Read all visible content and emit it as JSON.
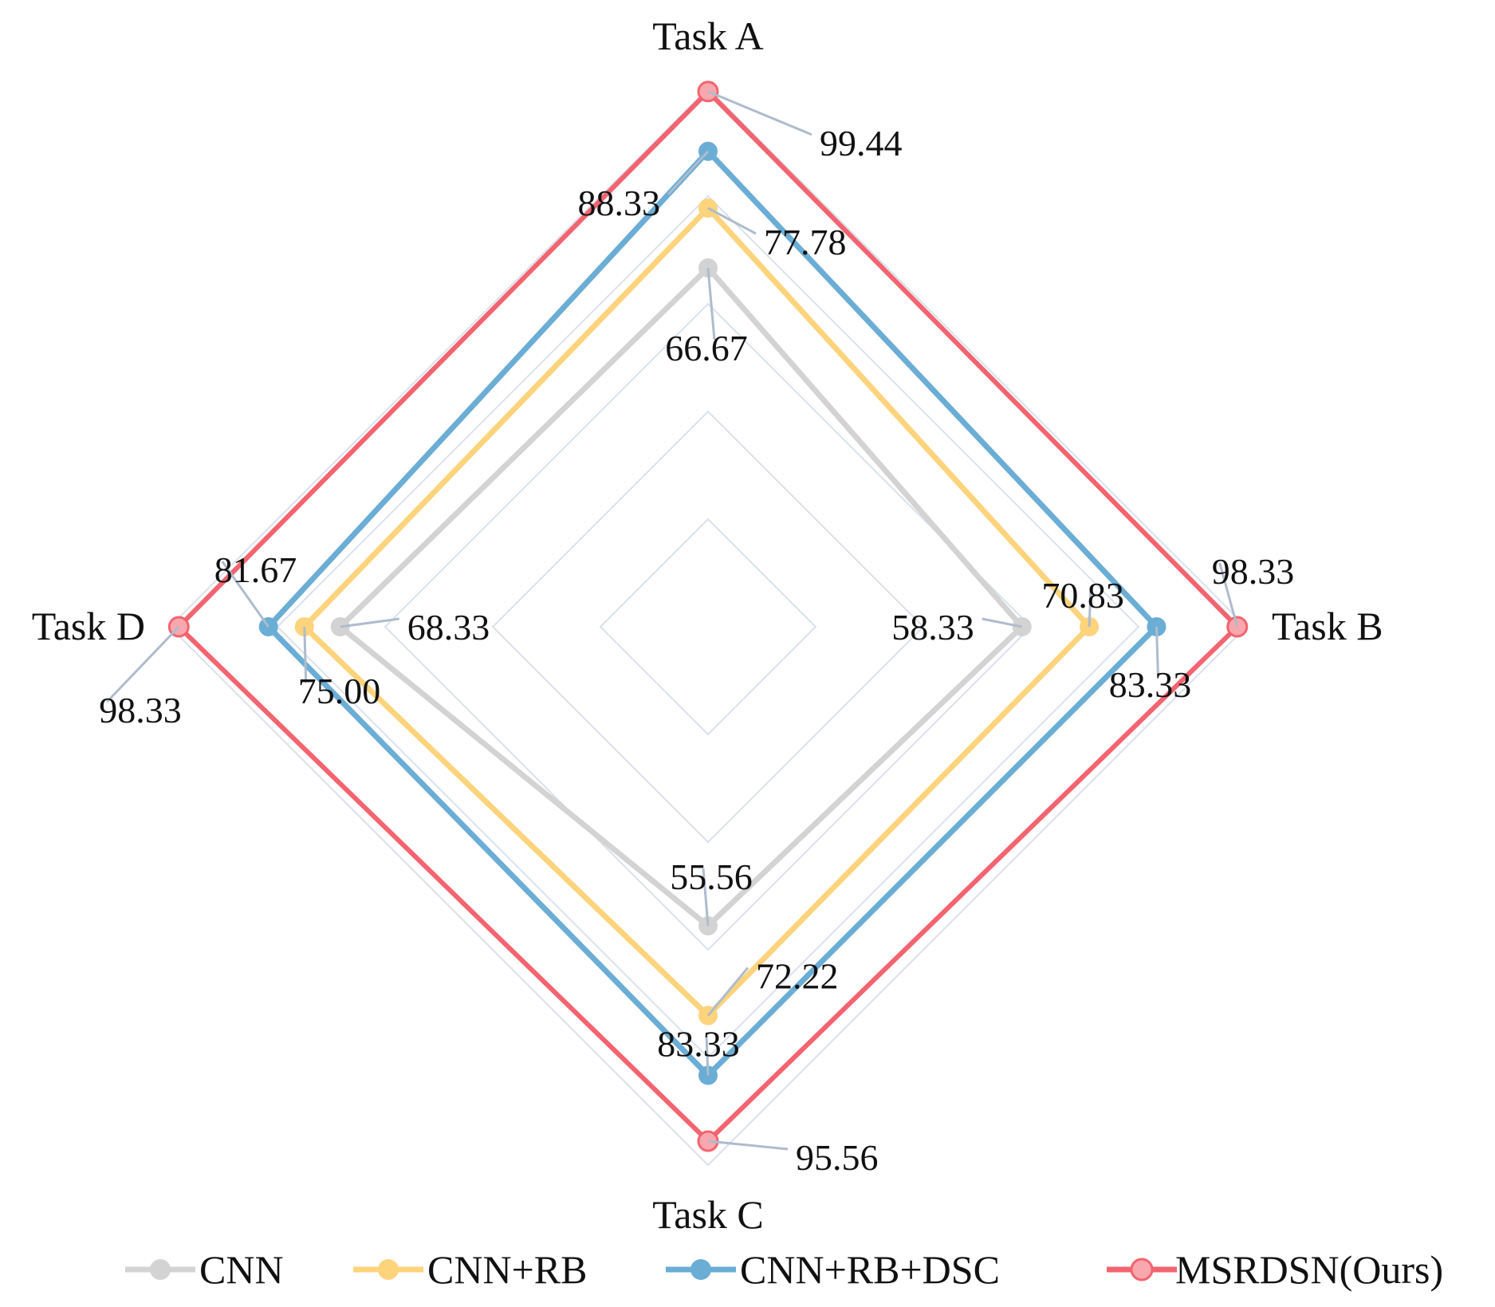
{
  "chart_data": {
    "type": "radar",
    "axes": [
      "Task A",
      "Task B",
      "Task C",
      "Task D"
    ],
    "axis_range": [
      0,
      100
    ],
    "grid_levels": [
      20,
      40,
      60,
      80,
      100
    ],
    "series": [
      {
        "name": "CNN",
        "values": [
          66.67,
          58.33,
          55.56,
          68.33
        ],
        "labels": [
          "66.67",
          "58.33",
          "55.56",
          "68.33"
        ],
        "color": "#d3d3d3"
      },
      {
        "name": "CNN+RB",
        "values": [
          77.78,
          70.83,
          72.22,
          75.0
        ],
        "labels": [
          "77.78",
          "70.83",
          "72.22",
          "75.00"
        ],
        "color": "#fdd37c"
      },
      {
        "name": "CNN+RB+DSC",
        "values": [
          88.33,
          83.33,
          83.33,
          81.67
        ],
        "labels": [
          "88.33",
          "83.33",
          "83.33",
          "81.67"
        ],
        "color": "#6aadd5"
      },
      {
        "name": "MSRDSN(Ours)",
        "values": [
          99.44,
          98.33,
          95.56,
          98.33
        ],
        "labels": [
          "99.44",
          "98.33",
          "95.56",
          "98.33"
        ],
        "color": "#f26470"
      }
    ],
    "legend": "bottom"
  }
}
